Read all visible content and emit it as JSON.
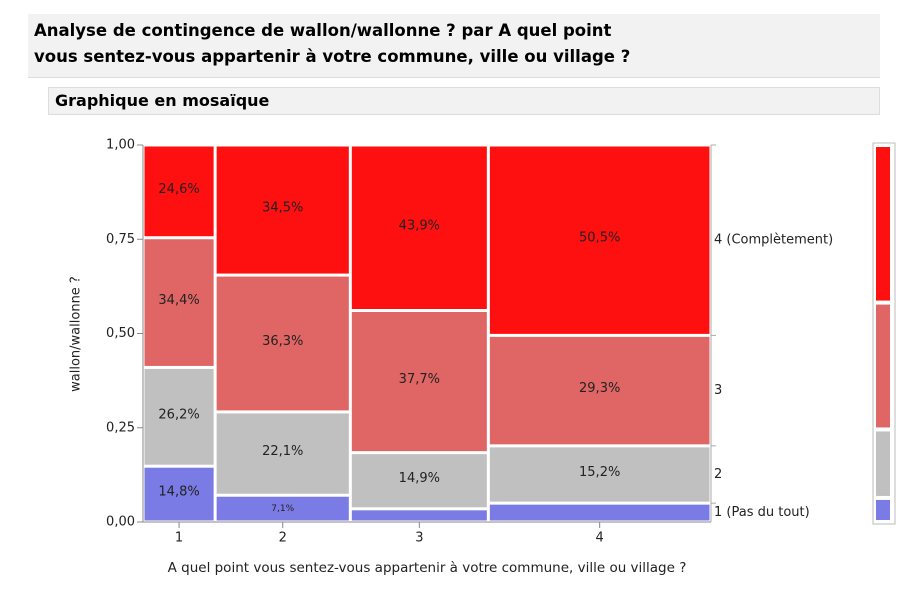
{
  "header": {
    "title": "Analyse de contingence de wallon/wallonne ? par A quel point vous sentez-vous appartenir à votre commune, ville ou village ?",
    "subtitle": "Graphique en mosaïque"
  },
  "chart_data": {
    "type": "mosaic",
    "x_label": "A quel point vous sentez-vous appartenir à votre commune, ville ou village ?",
    "y_label": "wallon/wallonne ?",
    "categories": [
      "1",
      "2",
      "3",
      "4"
    ],
    "column_shares": [
      0.127,
      0.238,
      0.243,
      0.392
    ],
    "series": [
      {
        "name": "1 (Pas du tout)",
        "color": "#7b7be6",
        "values": [
          0.148,
          0.071,
          0.035,
          0.05
        ],
        "value_labels": [
          "14,8%",
          "7,1%",
          null,
          null
        ]
      },
      {
        "name": "2",
        "color": "#c0c0c0",
        "values": [
          0.262,
          0.221,
          0.149,
          0.152
        ],
        "value_labels": [
          "26,2%",
          "22,1%",
          "14,9%",
          "15,2%"
        ]
      },
      {
        "name": "3",
        "color": "#e06666",
        "values": [
          0.344,
          0.363,
          0.377,
          0.293
        ],
        "value_labels": [
          "34,4%",
          "36,3%",
          "37,7%",
          "29,3%"
        ]
      },
      {
        "name": "4 (Complètement)",
        "color": "#ff1010",
        "values": [
          0.246,
          0.345,
          0.439,
          0.505
        ],
        "value_labels": [
          "24,6%",
          "34,5%",
          "43,9%",
          "50,5%"
        ]
      }
    ],
    "ylim": [
      0,
      1
    ],
    "yticks": [
      {
        "value": 0,
        "label": "0,00"
      },
      {
        "value": 0.25,
        "label": "0,25"
      },
      {
        "value": 0.5,
        "label": "0,50"
      },
      {
        "value": 0.75,
        "label": "0,75"
      },
      {
        "value": 1,
        "label": "1,00"
      }
    ]
  }
}
